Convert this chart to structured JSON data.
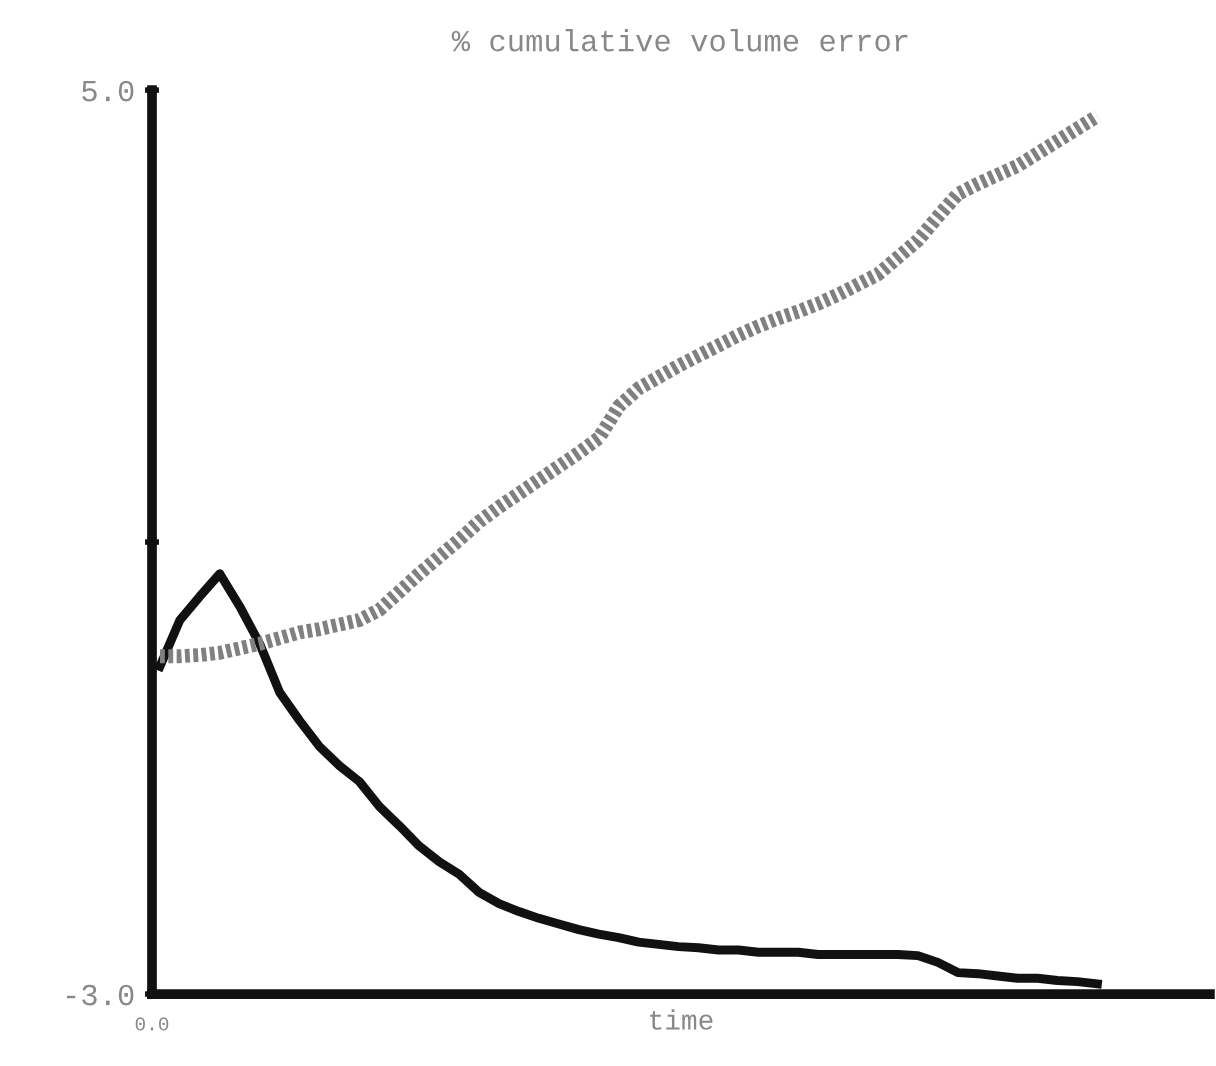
{
  "chart_data": {
    "type": "line",
    "title": "% cumulative volume error",
    "xlabel": "time",
    "annotations": [
      "0.0"
    ],
    "categories": [
      null,
      null,
      null,
      null,
      null,
      null,
      null,
      null,
      null,
      null,
      null,
      null,
      null,
      null,
      null,
      null,
      null,
      null,
      null,
      null,
      null,
      null,
      null,
      null,
      null,
      null,
      null,
      null,
      null,
      null,
      null,
      null,
      null,
      null,
      null,
      null,
      null,
      null,
      null,
      null,
      null,
      null,
      null,
      null,
      null,
      null,
      null,
      null
    ],
    "ylim": [
      -3.0,
      5.0
    ],
    "yticks": [
      {
        "value": -3.0,
        "label": "-3.0"
      },
      {
        "value": 1.0,
        "label": null
      },
      {
        "value": 5.0,
        "label": "5.0"
      }
    ],
    "grid": false,
    "marker": "none",
    "series": [
      {
        "color": "#111111",
        "line_style": "solid",
        "values": [
          -0.1,
          0.31,
          0.52,
          0.72,
          0.43,
          0.1,
          -0.33,
          -0.58,
          -0.81,
          -0.98,
          -1.12,
          -1.34,
          -1.51,
          -1.69,
          -1.83,
          -1.94,
          -2.1,
          -2.2,
          -2.27,
          -2.33,
          -2.38,
          -2.43,
          -2.47,
          -2.5,
          -2.54,
          -2.56,
          -2.58,
          -2.59,
          -2.61,
          -2.61,
          -2.63,
          -2.63,
          -2.63,
          -2.65,
          -2.65,
          -2.65,
          -2.65,
          -2.65,
          -2.66,
          -2.72,
          -2.81,
          -2.82,
          -2.84,
          -2.86,
          -2.86,
          -2.88,
          -2.89,
          -2.91
        ]
      },
      {
        "color": "#808080",
        "line_style": "dotted",
        "values": [
          -0.01,
          -0.01,
          0.0,
          0.02,
          0.06,
          0.1,
          0.15,
          0.2,
          0.23,
          0.27,
          0.31,
          0.4,
          0.56,
          0.72,
          0.87,
          1.02,
          1.18,
          1.31,
          1.43,
          1.55,
          1.67,
          1.79,
          1.92,
          2.2,
          2.36,
          2.46,
          2.56,
          2.65,
          2.74,
          2.83,
          2.91,
          2.98,
          3.04,
          3.11,
          3.19,
          3.28,
          3.37,
          3.52,
          3.67,
          3.88,
          4.08,
          4.17,
          4.25,
          4.33,
          4.44,
          4.55,
          4.66,
          4.77
        ]
      }
    ]
  }
}
